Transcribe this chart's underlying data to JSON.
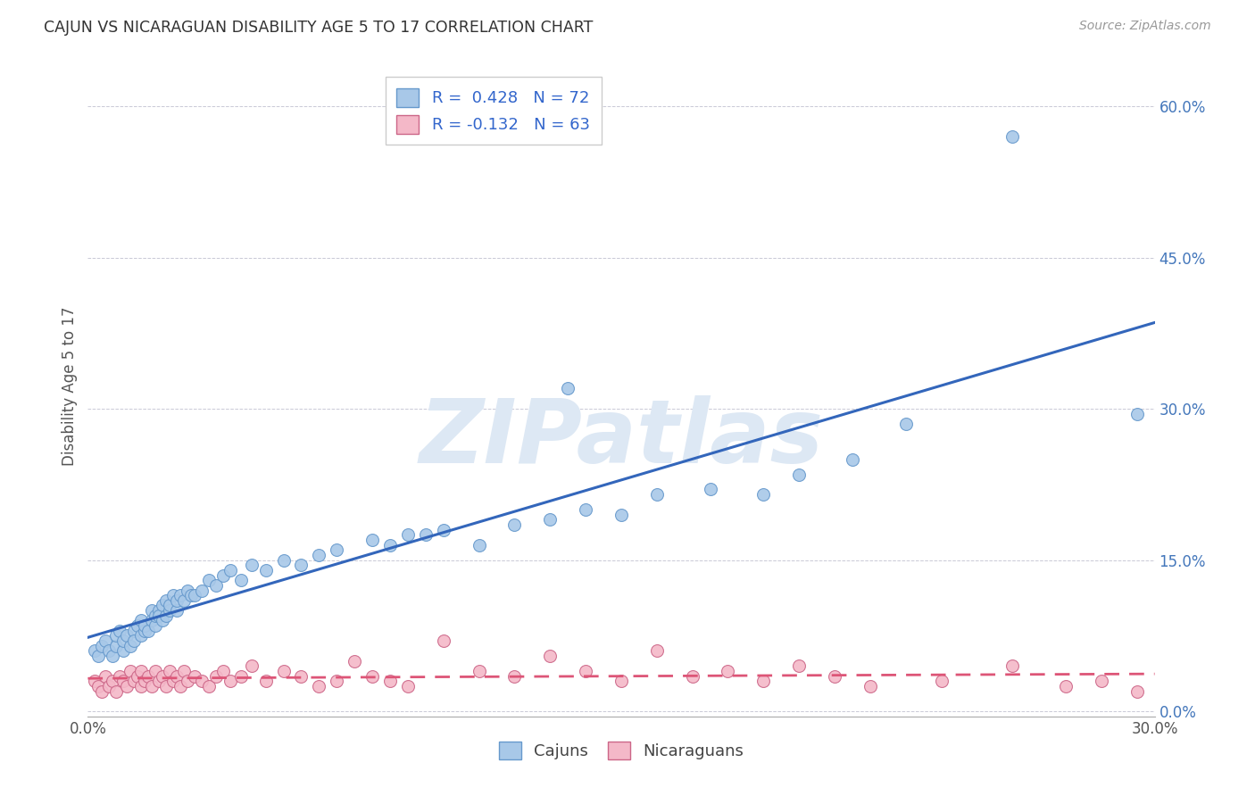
{
  "title": "CAJUN VS NICARAGUAN DISABILITY AGE 5 TO 17 CORRELATION CHART",
  "source": "Source: ZipAtlas.com",
  "ylabel": "Disability Age 5 to 17",
  "xlim": [
    0.0,
    0.3
  ],
  "ylim": [
    -0.005,
    0.65
  ],
  "ytick_vals": [
    0.0,
    0.15,
    0.3,
    0.45,
    0.6
  ],
  "xtick_vals": [
    0.0,
    0.3
  ],
  "cajun_R": 0.428,
  "cajun_N": 72,
  "nicaraguan_R": -0.132,
  "nicaraguan_N": 63,
  "cajun_color": "#a8c8e8",
  "cajun_edge": "#6699cc",
  "nicaraguan_color": "#f4b8c8",
  "nicaraguan_edge": "#cc6688",
  "cajun_line_color": "#3366bb",
  "nicaraguan_line_color": "#dd5577",
  "watermark_color": "#dde8f4",
  "cajun_scatter_x": [
    0.002,
    0.003,
    0.004,
    0.005,
    0.006,
    0.007,
    0.008,
    0.008,
    0.009,
    0.01,
    0.01,
    0.011,
    0.012,
    0.013,
    0.013,
    0.014,
    0.015,
    0.015,
    0.016,
    0.016,
    0.017,
    0.018,
    0.018,
    0.019,
    0.019,
    0.02,
    0.02,
    0.021,
    0.021,
    0.022,
    0.022,
    0.023,
    0.023,
    0.024,
    0.025,
    0.025,
    0.026,
    0.027,
    0.028,
    0.029,
    0.03,
    0.032,
    0.034,
    0.036,
    0.038,
    0.04,
    0.043,
    0.046,
    0.05,
    0.055,
    0.06,
    0.065,
    0.07,
    0.08,
    0.085,
    0.09,
    0.095,
    0.1,
    0.11,
    0.12,
    0.13,
    0.14,
    0.135,
    0.15,
    0.16,
    0.175,
    0.19,
    0.2,
    0.215,
    0.23,
    0.26,
    0.295
  ],
  "cajun_scatter_y": [
    0.06,
    0.055,
    0.065,
    0.07,
    0.06,
    0.055,
    0.065,
    0.075,
    0.08,
    0.06,
    0.07,
    0.075,
    0.065,
    0.08,
    0.07,
    0.085,
    0.075,
    0.09,
    0.08,
    0.085,
    0.08,
    0.09,
    0.1,
    0.085,
    0.095,
    0.1,
    0.095,
    0.09,
    0.105,
    0.095,
    0.11,
    0.1,
    0.105,
    0.115,
    0.1,
    0.11,
    0.115,
    0.11,
    0.12,
    0.115,
    0.115,
    0.12,
    0.13,
    0.125,
    0.135,
    0.14,
    0.13,
    0.145,
    0.14,
    0.15,
    0.145,
    0.155,
    0.16,
    0.17,
    0.165,
    0.175,
    0.175,
    0.18,
    0.165,
    0.185,
    0.19,
    0.2,
    0.32,
    0.195,
    0.215,
    0.22,
    0.215,
    0.235,
    0.25,
    0.285,
    0.57,
    0.295
  ],
  "nicaraguan_scatter_x": [
    0.002,
    0.003,
    0.004,
    0.005,
    0.006,
    0.007,
    0.008,
    0.009,
    0.01,
    0.011,
    0.012,
    0.013,
    0.014,
    0.015,
    0.015,
    0.016,
    0.017,
    0.018,
    0.019,
    0.02,
    0.021,
    0.022,
    0.023,
    0.024,
    0.025,
    0.026,
    0.027,
    0.028,
    0.03,
    0.032,
    0.034,
    0.036,
    0.038,
    0.04,
    0.043,
    0.046,
    0.05,
    0.055,
    0.06,
    0.065,
    0.07,
    0.075,
    0.08,
    0.085,
    0.09,
    0.1,
    0.11,
    0.12,
    0.13,
    0.14,
    0.15,
    0.16,
    0.17,
    0.18,
    0.19,
    0.2,
    0.21,
    0.22,
    0.24,
    0.26,
    0.275,
    0.285,
    0.295
  ],
  "nicaraguan_scatter_y": [
    0.03,
    0.025,
    0.02,
    0.035,
    0.025,
    0.03,
    0.02,
    0.035,
    0.03,
    0.025,
    0.04,
    0.03,
    0.035,
    0.025,
    0.04,
    0.03,
    0.035,
    0.025,
    0.04,
    0.03,
    0.035,
    0.025,
    0.04,
    0.03,
    0.035,
    0.025,
    0.04,
    0.03,
    0.035,
    0.03,
    0.025,
    0.035,
    0.04,
    0.03,
    0.035,
    0.045,
    0.03,
    0.04,
    0.035,
    0.025,
    0.03,
    0.05,
    0.035,
    0.03,
    0.025,
    0.07,
    0.04,
    0.035,
    0.055,
    0.04,
    0.03,
    0.06,
    0.035,
    0.04,
    0.03,
    0.045,
    0.035,
    0.025,
    0.03,
    0.045,
    0.025,
    0.03,
    0.02
  ]
}
